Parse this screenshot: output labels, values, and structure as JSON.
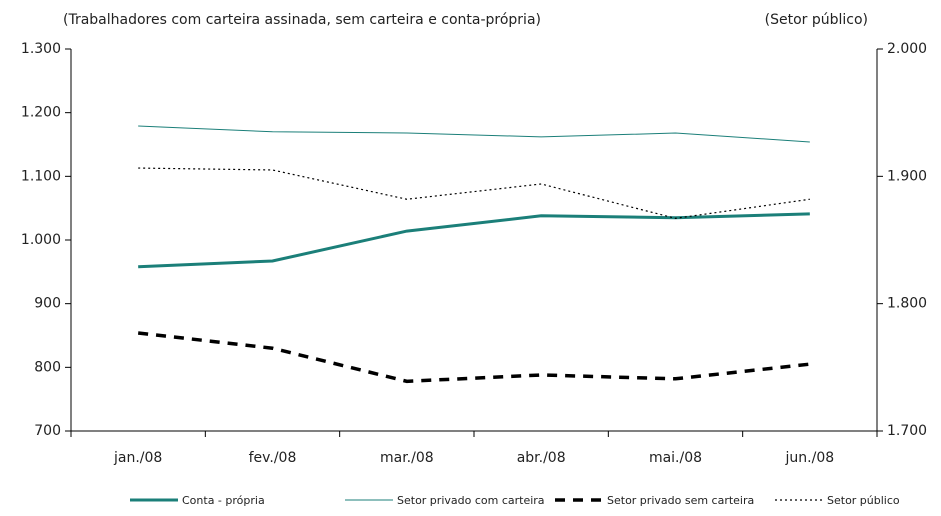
{
  "chart_data": {
    "type": "line",
    "ylabel": "(Trabalhadores com carteira assinada, sem carteira e conta-própria)",
    "y2label": "(Setor público)",
    "categories": [
      "jan./08",
      "fev./08",
      "mar./08",
      "abr./08",
      "mai./08",
      "jun./08"
    ],
    "series": [
      {
        "name": "Conta - própria",
        "color": "#1b7f79",
        "line_style": "thick",
        "values": [
          958,
          967,
          1014,
          1038,
          1035,
          1041
        ]
      },
      {
        "name": "Setor privado com carteira",
        "color": "#1b7f79",
        "line_style": "solid",
        "values": [
          1179,
          1170,
          1168,
          1162,
          1168,
          1154
        ]
      },
      {
        "name": "Setor privado sem carteira",
        "color": "#000000",
        "line_style": "dashed",
        "values": [
          854,
          830,
          778,
          788,
          782,
          805
        ]
      },
      {
        "name": "Setor  público",
        "color": "#000000",
        "line_style": "dotted",
        "axis": "y2",
        "values": [
          1906.5,
          1905,
          1882,
          1894,
          1867,
          1882
        ]
      }
    ],
    "ylim": [
      700,
      1300
    ],
    "yticks": [
      700,
      800,
      900,
      {
        "value": 1000,
        "label": "1.000"
      },
      {
        "value": 1100,
        "label": "1.100"
      },
      {
        "value": 1200,
        "label": "1.200"
      },
      {
        "value": 1300,
        "label": "1.300"
      }
    ],
    "y2lim": [
      1700,
      2000
    ],
    "y2ticks": [
      {
        "value": 1700,
        "label": "1.700"
      },
      {
        "value": 1800,
        "label": "1.800"
      },
      {
        "value": 1900,
        "label": "1.900"
      },
      {
        "value": 2000,
        "label": "2.000"
      }
    ]
  }
}
